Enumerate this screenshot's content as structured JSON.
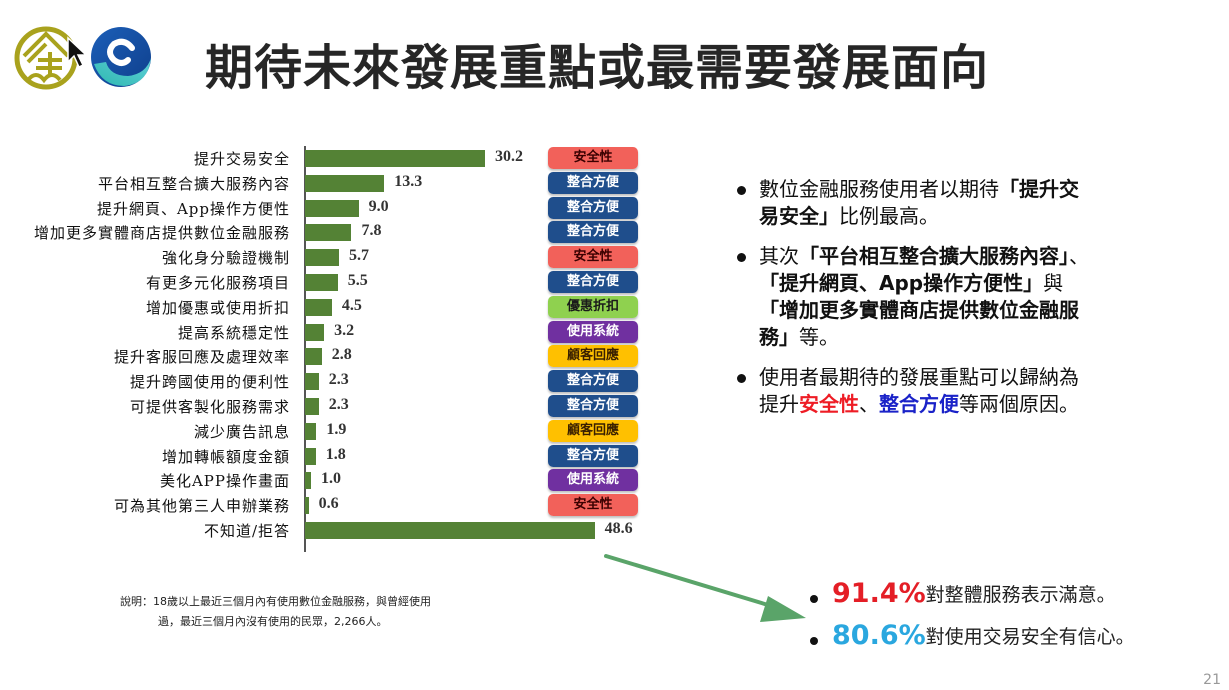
{
  "header": {
    "title": "期待未來發展重點或最需要發展面向"
  },
  "colors": {
    "bar": "#548235",
    "tag_safety": "#f2615a",
    "tag_integration": "#1f4e8c",
    "tag_discount": "#8fd14f",
    "tag_system": "#7030a0",
    "tag_service": "#ffc000",
    "stat1": "#e41e26",
    "stat2": "#2aa7df",
    "arrow": "#5aa469"
  },
  "chart_data": {
    "type": "bar",
    "orientation": "horizontal",
    "title": "期待未來發展重點或最需要發展面向",
    "xlabel": "",
    "ylabel": "",
    "unit": "%",
    "grid": false,
    "categories": [
      "提升交易安全",
      "平台相互整合擴大服務內容",
      "提升網頁、App操作方便性",
      "增加更多實體商店提供數位金融服務",
      "強化身分驗證機制",
      "有更多元化服務項目",
      "增加優惠或使用折扣",
      "提高系統穩定性",
      "提升客服回應及處理效率",
      "提升跨國使用的便利性",
      "可提供客製化服務需求",
      "減少廣告訊息",
      "增加轉帳額度金額",
      "美化APP操作畫面",
      "可為其他第三人申辦業務",
      "不知道/拒答"
    ],
    "values": [
      30.2,
      13.3,
      9.0,
      7.8,
      5.7,
      5.5,
      4.5,
      3.2,
      2.8,
      2.3,
      2.3,
      1.9,
      1.8,
      1.0,
      0.6,
      48.6
    ],
    "value_labels": [
      "30.2",
      "13.3",
      "9.0",
      "7.8",
      "5.7",
      "5.5",
      "4.5",
      "3.2",
      "2.8",
      "2.3",
      "2.3",
      "1.9",
      "1.8",
      "1.0",
      "0.6",
      "48.6"
    ],
    "tags": [
      "安全性",
      "整合方便",
      "整合方便",
      "整合方便",
      "安全性",
      "整合方便",
      "優惠折扣",
      "使用系統",
      "顧客回應",
      "整合方便",
      "整合方便",
      "顧客回應",
      "整合方便",
      "使用系統",
      "安全性",
      ""
    ],
    "tag_types": [
      "safety",
      "integration",
      "integration",
      "integration",
      "safety",
      "integration",
      "discount",
      "system",
      "service",
      "integration",
      "integration",
      "service",
      "integration",
      "system",
      "safety",
      ""
    ]
  },
  "bullets": [
    {
      "parts": [
        {
          "t": "數位金融服務使用者以期待",
          "s": ""
        },
        {
          "t": "「提升交易安全」",
          "s": "b"
        },
        {
          "t": "比例最高。",
          "s": ""
        }
      ]
    },
    {
      "parts": [
        {
          "t": "其次",
          "s": ""
        },
        {
          "t": "「平台相互整合擴大服務內容」",
          "s": "b"
        },
        {
          "t": "、",
          "s": ""
        },
        {
          "t": "「提升網頁、App操作方便性」",
          "s": "b"
        },
        {
          "t": "與",
          "s": ""
        },
        {
          "t": "「增加更多實體商店提供數位金融服務」",
          "s": "b"
        },
        {
          "t": "等。",
          "s": ""
        }
      ]
    },
    {
      "parts": [
        {
          "t": "使用者最期待的發展重點可以歸納為提升",
          "s": ""
        },
        {
          "t": "安全性",
          "s": "red"
        },
        {
          "t": "、",
          "s": ""
        },
        {
          "t": "整合方便",
          "s": "blue"
        },
        {
          "t": "等兩個原因。",
          "s": ""
        }
      ]
    }
  ],
  "note": {
    "line1": "說明：18歲以上最近三個月內有使用數位金融服務，與曾經使用",
    "line2": "過，最近三個月內沒有使用的民眾，2,266人。"
  },
  "stats": [
    {
      "pct": "91.4%",
      "text": "對整體服務表示滿意。"
    },
    {
      "pct": "80.6%",
      "text": "對使用交易安全有信心。"
    }
  ],
  "page_number": "21"
}
